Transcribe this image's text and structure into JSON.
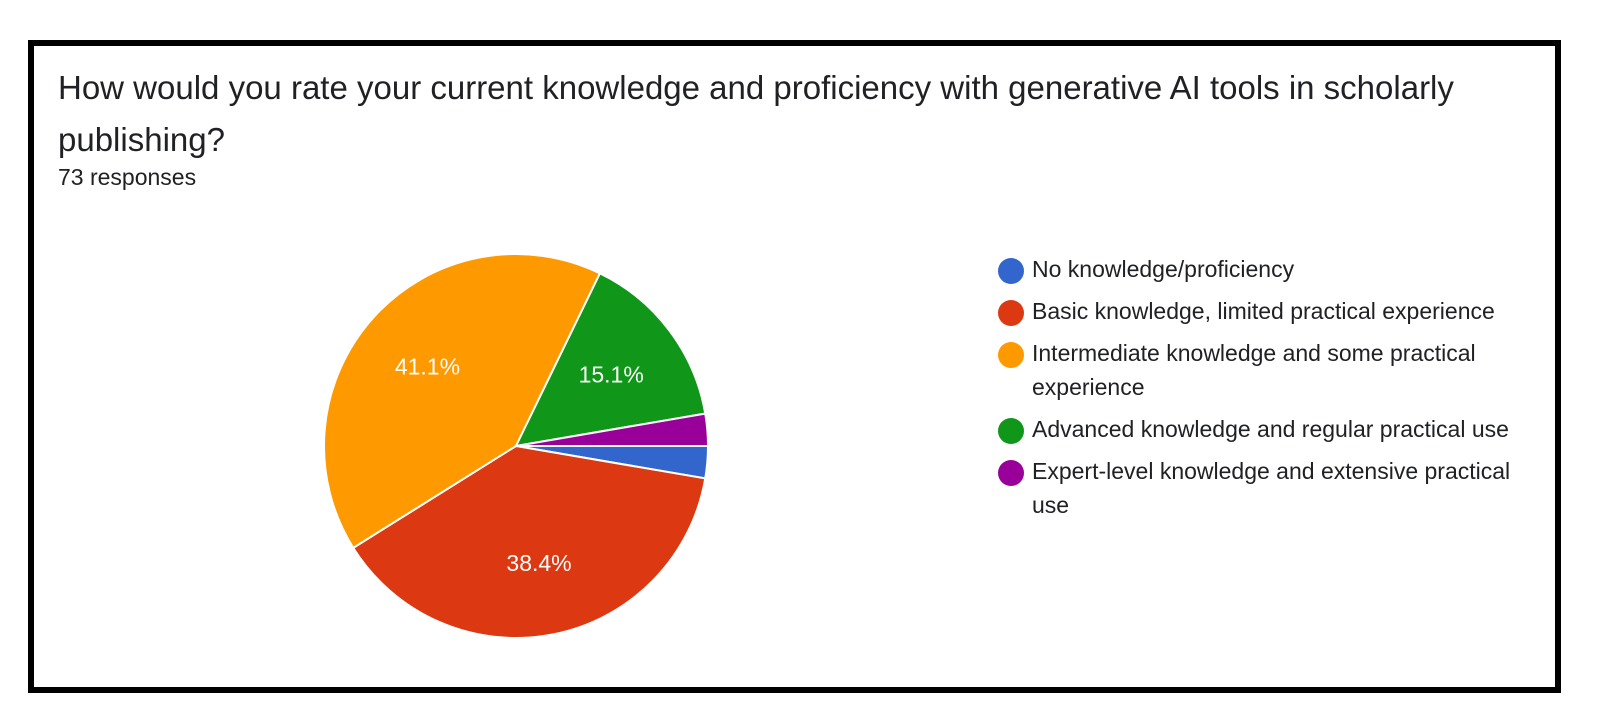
{
  "question": "How would you rate your current knowledge and proficiency with generative AI tools in scholarly publishing?",
  "responses_label": "73 responses",
  "chart_data": {
    "type": "pie",
    "title": "How would you rate your current knowledge and proficiency with generative AI tools in scholarly publishing?",
    "total_responses": 73,
    "legend_position": "right",
    "slices": [
      {
        "label": "No knowledge/proficiency",
        "value": 2.7,
        "display_label": "",
        "color": "#3366cc"
      },
      {
        "label": "Basic knowledge, limited practical experience",
        "value": 38.4,
        "display_label": "38.4%",
        "color": "#dc3912"
      },
      {
        "label": "Intermediate knowledge and some practical experience",
        "value": 41.1,
        "display_label": "41.1%",
        "color": "#ff9900"
      },
      {
        "label": "Advanced knowledge and regular practical use",
        "value": 15.1,
        "display_label": "15.1%",
        "color": "#109618"
      },
      {
        "label": "Expert-level knowledge and extensive practical use",
        "value": 2.7,
        "display_label": "",
        "color": "#990099"
      }
    ]
  }
}
